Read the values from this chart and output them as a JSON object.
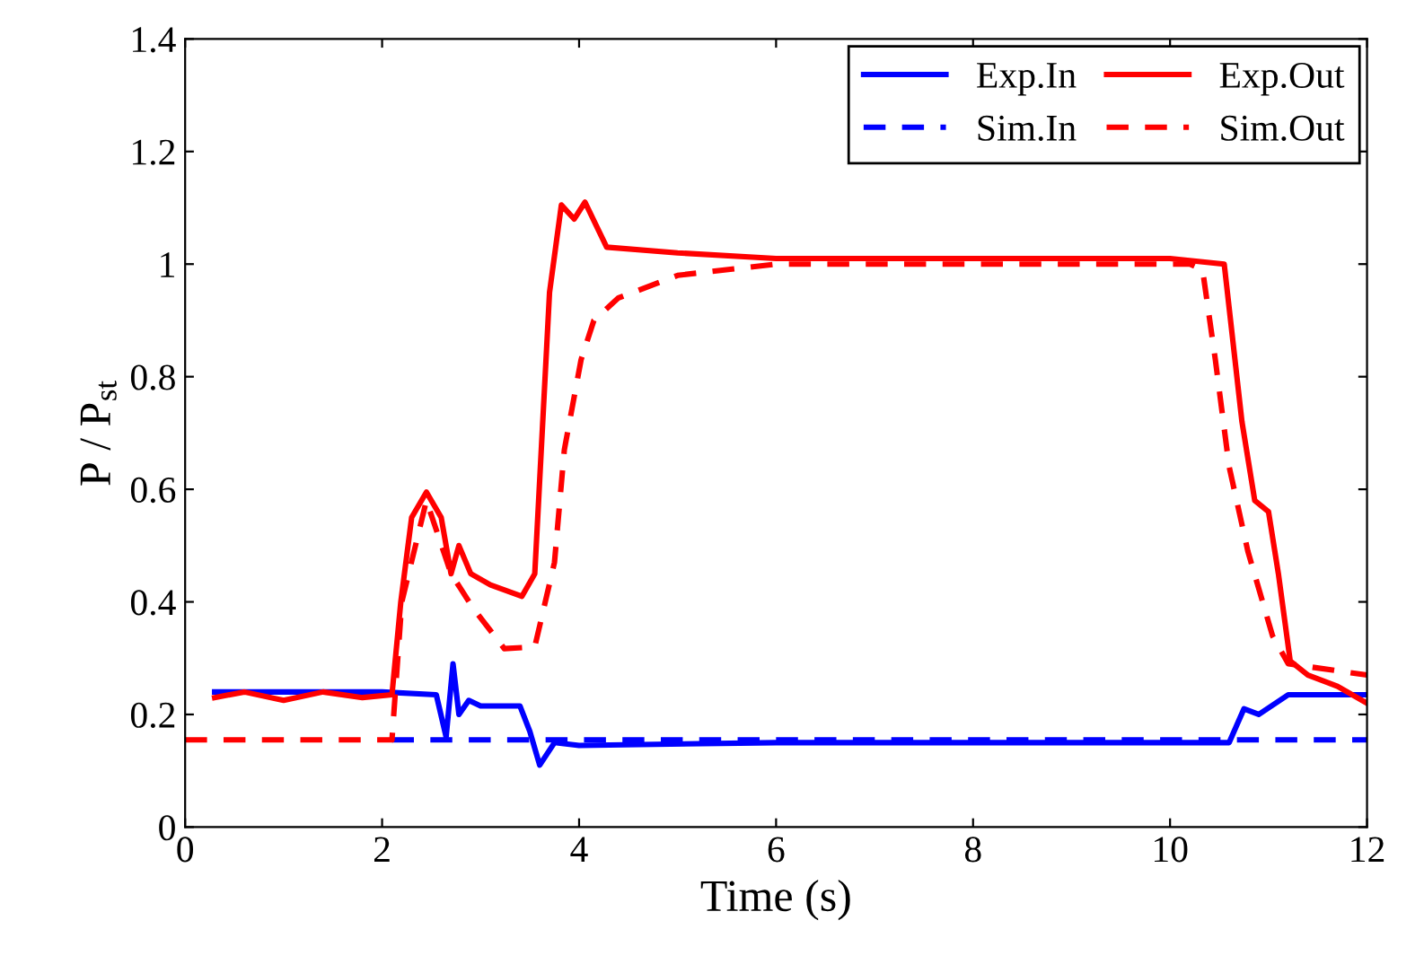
{
  "chart_data": {
    "type": "line",
    "xlabel": "Time (s)",
    "ylabel": "P / P$_{st}$",
    "xlim": [
      0,
      12
    ],
    "ylim": [
      0,
      1.4
    ],
    "xticks": [
      0,
      2,
      4,
      6,
      8,
      10,
      12
    ],
    "yticks": [
      0,
      0.2,
      0.4,
      0.6,
      0.8,
      1,
      1.2,
      1.4
    ],
    "grid": false,
    "legend": "top right",
    "marker": "none",
    "series": [
      {
        "name": "Exp.In",
        "color": "#0000ff",
        "line_style": "solid",
        "x": [
          0.3,
          1.0,
          2.0,
          2.55,
          2.65,
          2.72,
          2.78,
          2.88,
          3.0,
          3.4,
          3.5,
          3.6,
          3.75,
          4.0,
          6.0,
          8.0,
          10.6,
          10.75,
          10.9,
          11.2,
          12.0
        ],
        "values": [
          0.24,
          0.24,
          0.24,
          0.235,
          0.16,
          0.29,
          0.2,
          0.225,
          0.215,
          0.215,
          0.17,
          0.11,
          0.15,
          0.145,
          0.15,
          0.15,
          0.15,
          0.21,
          0.2,
          0.235,
          0.235
        ]
      },
      {
        "name": "Exp.Out",
        "color": "#ff0000",
        "line_style": "solid",
        "x": [
          0.3,
          0.6,
          1.0,
          1.4,
          1.8,
          2.1,
          2.19,
          2.3,
          2.45,
          2.6,
          2.7,
          2.78,
          2.9,
          3.1,
          3.42,
          3.55,
          3.7,
          3.82,
          3.95,
          4.06,
          4.28,
          5.0,
          6.0,
          7.0,
          8.0,
          9.0,
          10.0,
          10.55,
          10.73,
          10.86,
          11.0,
          11.1,
          11.22,
          11.4,
          11.7,
          12.0
        ],
        "values": [
          0.23,
          0.24,
          0.225,
          0.24,
          0.23,
          0.235,
          0.4,
          0.55,
          0.595,
          0.55,
          0.45,
          0.5,
          0.45,
          0.43,
          0.41,
          0.45,
          0.95,
          1.105,
          1.08,
          1.11,
          1.03,
          1.02,
          1.01,
          1.01,
          1.01,
          1.01,
          1.01,
          1.0,
          0.72,
          0.58,
          0.56,
          0.45,
          0.295,
          0.27,
          0.25,
          0.22
        ]
      },
      {
        "name": "Sim.In",
        "color": "#0000ff",
        "line_style": "dashed",
        "x": [
          2.1,
          12
        ],
        "values": [
          0.155,
          0.155
        ]
      },
      {
        "name": "Sim.Out",
        "color": "#ff0000",
        "line_style": "dashed",
        "x": [
          0,
          2.1,
          2.2,
          2.45,
          2.7,
          2.92,
          3.24,
          3.55,
          3.75,
          3.85,
          4.02,
          4.15,
          4.4,
          5.0,
          6.0,
          8.0,
          10.2,
          10.33,
          10.46,
          10.6,
          10.79,
          11.04,
          11.2,
          12.0
        ],
        "values": [
          0.155,
          0.155,
          0.4,
          0.58,
          0.45,
          0.39,
          0.317,
          0.32,
          0.47,
          0.67,
          0.83,
          0.9,
          0.94,
          0.98,
          1.0,
          1.0,
          1.0,
          0.99,
          0.83,
          0.64,
          0.49,
          0.34,
          0.29,
          0.27
        ]
      }
    ]
  }
}
